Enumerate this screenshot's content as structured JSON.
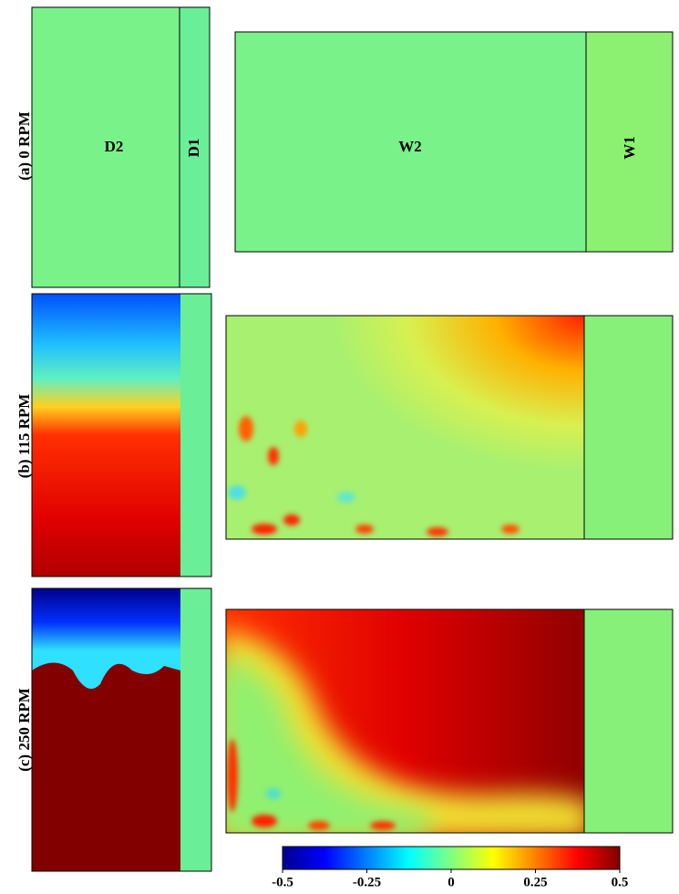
{
  "rows": [
    {
      "label": "(a) 0 RPM",
      "regions": {
        "d2": "D2",
        "d1": "D1",
        "w2": "W2",
        "w1": "W1"
      }
    },
    {
      "label": "(b) 115 RPM"
    },
    {
      "label": "(c) 250 RPM"
    }
  ],
  "colorbar": {
    "ticks": [
      -0.5,
      -0.25,
      0,
      0.25,
      0.5
    ]
  }
}
